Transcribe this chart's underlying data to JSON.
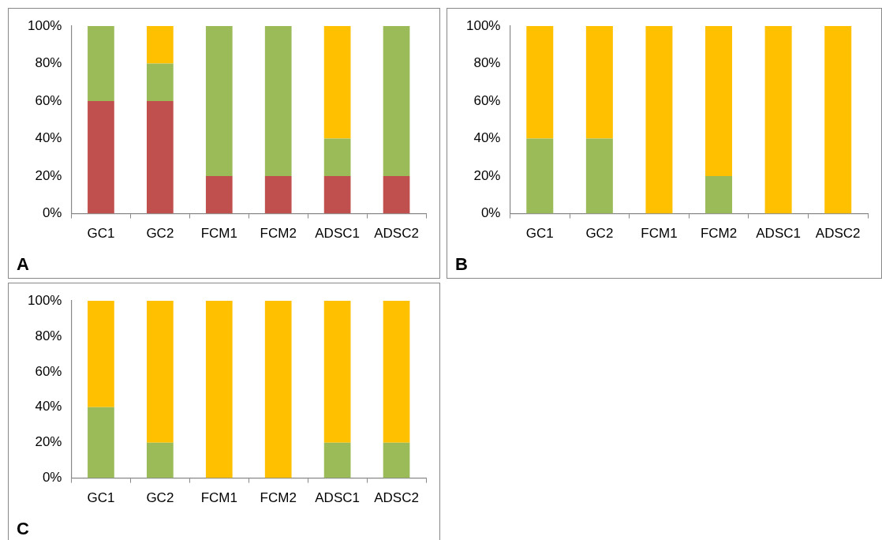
{
  "chart_data": [
    {
      "type": "bar",
      "stacked": true,
      "categories": [
        "GC1",
        "GC2",
        "FCM1",
        "FCM2",
        "ADSC1",
        "ADSC2"
      ],
      "series": [
        {
          "color": "#c0504d",
          "values": [
            60,
            60,
            20,
            20,
            20,
            20
          ]
        },
        {
          "color": "#9bbb59",
          "values": [
            40,
            20,
            80,
            80,
            20,
            80
          ]
        },
        {
          "color": "#ffc000",
          "values": [
            0,
            20,
            0,
            0,
            60,
            0
          ]
        }
      ],
      "ylim": [
        0,
        100
      ],
      "yticks": [
        {
          "value": 0,
          "label": "0%"
        },
        {
          "value": 20,
          "label": "20%"
        },
        {
          "value": 40,
          "label": "40%"
        },
        {
          "value": 60,
          "label": "60%"
        },
        {
          "value": 80,
          "label": "80%"
        },
        {
          "value": 100,
          "label": "100%"
        }
      ],
      "grid": false,
      "legend": false,
      "annotations": [
        "A"
      ]
    },
    {
      "type": "bar",
      "stacked": true,
      "categories": [
        "GC1",
        "GC2",
        "FCM1",
        "FCM2",
        "ADSC1",
        "ADSC2"
      ],
      "series": [
        {
          "color": "#9bbb59",
          "values": [
            40,
            40,
            0,
            20,
            0,
            0
          ]
        },
        {
          "color": "#ffc000",
          "values": [
            60,
            60,
            100,
            80,
            100,
            100
          ]
        }
      ],
      "ylim": [
        0,
        100
      ],
      "yticks": [
        {
          "value": 0,
          "label": "0%"
        },
        {
          "value": 20,
          "label": "20%"
        },
        {
          "value": 40,
          "label": "40%"
        },
        {
          "value": 60,
          "label": "60%"
        },
        {
          "value": 80,
          "label": "80%"
        },
        {
          "value": 100,
          "label": "100%"
        }
      ],
      "grid": false,
      "legend": false,
      "annotations": [
        "B"
      ]
    },
    {
      "type": "bar",
      "stacked": true,
      "categories": [
        "GC1",
        "GC2",
        "FCM1",
        "FCM2",
        "ADSC1",
        "ADSC2"
      ],
      "series": [
        {
          "color": "#9bbb59",
          "values": [
            40,
            20,
            0,
            0,
            20,
            20
          ]
        },
        {
          "color": "#ffc000",
          "values": [
            60,
            80,
            100,
            100,
            80,
            80
          ]
        }
      ],
      "ylim": [
        0,
        100
      ],
      "yticks": [
        {
          "value": 0,
          "label": "0%"
        },
        {
          "value": 20,
          "label": "20%"
        },
        {
          "value": 40,
          "label": "40%"
        },
        {
          "value": 60,
          "label": "60%"
        },
        {
          "value": 80,
          "label": "80%"
        },
        {
          "value": 100,
          "label": "100%"
        }
      ],
      "grid": false,
      "legend": false,
      "annotations": [
        "C"
      ]
    }
  ]
}
